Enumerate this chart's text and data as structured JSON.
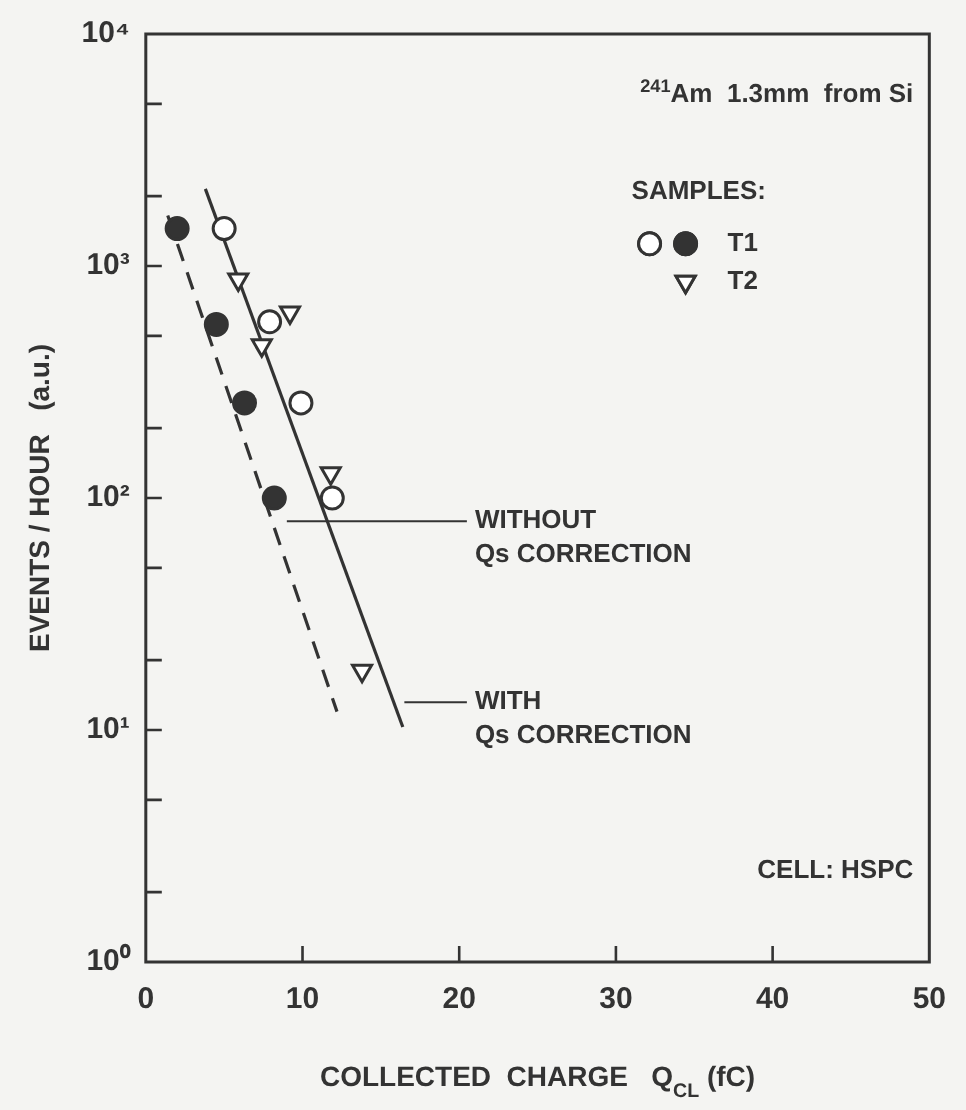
{
  "chart_data": {
    "type": "scatter",
    "xlabel": "COLLECTED  CHARGE   Q$_{CL}$ (fC)",
    "ylabel": "EVENTS / HOUR   (a.u.)",
    "legend_title": "SAMPLES:",
    "legend": "top right",
    "log": "y",
    "xlim": [
      0,
      50
    ],
    "xticks": [
      0,
      10,
      20,
      30,
      40,
      50
    ],
    "ylim": [
      1,
      10000
    ],
    "yticks": [
      {
        "value": 1,
        "label": "10⁰"
      },
      {
        "value": 2,
        "label": null
      },
      {
        "value": 5,
        "label": null
      },
      {
        "value": 10,
        "label": "10¹"
      },
      {
        "value": 20,
        "label": null
      },
      {
        "value": 50,
        "label": null
      },
      {
        "value": 100,
        "label": "10²"
      },
      {
        "value": 200,
        "label": null
      },
      {
        "value": 500,
        "label": null
      },
      {
        "value": 1000,
        "label": "10³"
      },
      {
        "value": 2000,
        "label": null
      },
      {
        "value": 5000,
        "label": null
      },
      {
        "value": 10000,
        "label": "10⁴"
      }
    ],
    "series": [
      {
        "name": "T1",
        "marker": "circle",
        "colors": [
          "#333333",
          "#333333",
          "#333333",
          "#333333",
          "#ffffff",
          "#ffffff",
          "#ffffff",
          "#ffffff"
        ],
        "x": [
          2.0,
          4.5,
          6.3,
          8.2,
          5.0,
          7.9,
          9.9,
          11.9
        ],
        "values": [
          1450,
          560,
          257,
          100,
          1450,
          575,
          257,
          100
        ]
      },
      {
        "name": "T2",
        "marker": "triangle",
        "color": "#ffffff",
        "x": [
          5.9,
          9.2,
          7.4,
          11.8,
          13.8
        ],
        "values": [
          875,
          630,
          455,
          128,
          18
        ]
      },
      {
        "type": "line",
        "line_style": "dashed",
        "marker": "none",
        "color": "#333333",
        "x": [
          1.4,
          12.2
        ],
        "values": [
          1650,
          12
        ]
      },
      {
        "type": "line",
        "line_style": "solid",
        "marker": "none",
        "color": "#333333",
        "x": [
          3.8,
          16.4
        ],
        "values": [
          2150,
          10.3
        ]
      }
    ],
    "annotations": [
      "$^{241}$Am  1.3mm  from Si",
      "WITHOUT\nQs CORRECTION",
      "WITH\nQs CORRECTION",
      "CELL: HSPC"
    ]
  }
}
